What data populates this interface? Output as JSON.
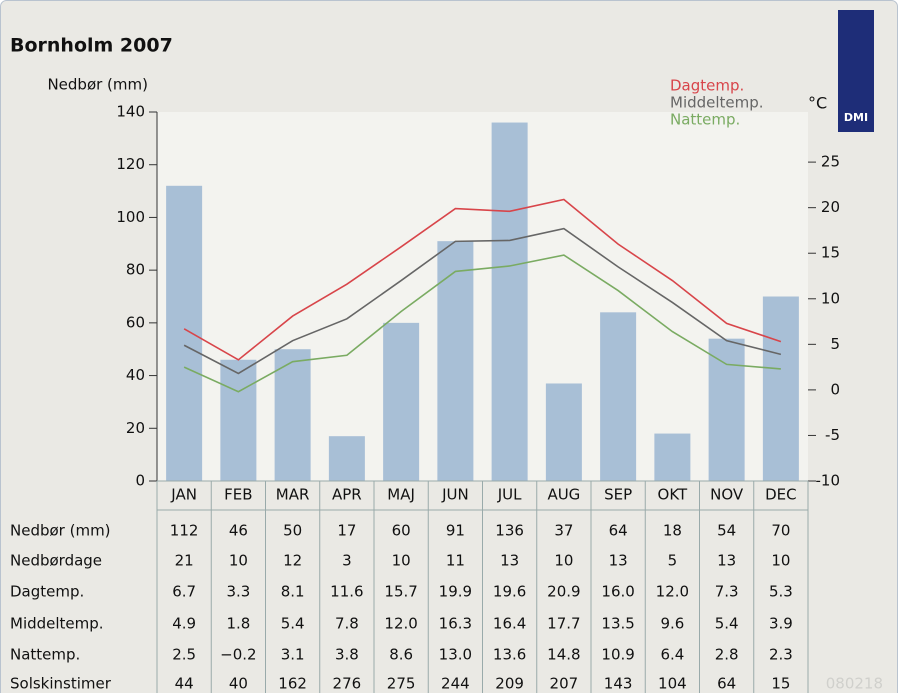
{
  "chart_data": {
    "type": "bar-line",
    "title": "Bornholm 2007",
    "y_label": "Nedbør (mm)",
    "y2_label": "°C",
    "stamp": "080218",
    "logo": "DMI",
    "categories": [
      "JAN",
      "FEB",
      "MAR",
      "APR",
      "MAJ",
      "JUN",
      "JUL",
      "AUG",
      "SEP",
      "OKT",
      "NOV",
      "DEC"
    ],
    "ylim": [
      0,
      140
    ],
    "yticks": [
      0,
      20,
      40,
      60,
      80,
      100,
      120,
      140
    ],
    "y2lim": [
      -10,
      30.5
    ],
    "y2ticks": [
      -10,
      -5,
      0,
      5,
      10,
      15,
      20,
      25
    ],
    "series": [
      {
        "name": "Nedbør (mm)",
        "type": "bar",
        "color": "#a8bfd6",
        "values": [
          112,
          46,
          50,
          17,
          60,
          91,
          136,
          37,
          64,
          18,
          54,
          70
        ]
      },
      {
        "name": "Dagtemp.",
        "type": "line",
        "axis": "y2",
        "color": "#d8454a",
        "values": [
          6.7,
          3.3,
          8.1,
          11.6,
          15.7,
          19.9,
          19.6,
          20.9,
          16.0,
          12.0,
          7.3,
          5.3
        ],
        "value_labels": [
          "6.7",
          "3.3",
          "8.1",
          "11.6",
          "15.7",
          "19.9",
          "19.6",
          "20.9",
          "16.0",
          "12.0",
          "7.3",
          "5.3"
        ]
      },
      {
        "name": "Middeltemp.",
        "type": "line",
        "axis": "y2",
        "color": "#666666",
        "values": [
          4.9,
          1.8,
          5.4,
          7.8,
          12.0,
          16.3,
          16.4,
          17.7,
          13.5,
          9.6,
          5.4,
          3.9
        ],
        "value_labels": [
          "4.9",
          "1.8",
          "5.4",
          "7.8",
          "12.0",
          "16.3",
          "16.4",
          "17.7",
          "13.5",
          "9.6",
          "5.4",
          "3.9"
        ]
      },
      {
        "name": "Nattemp.",
        "type": "line",
        "axis": "y2",
        "color": "#7aab62",
        "values": [
          2.5,
          -0.2,
          3.1,
          3.8,
          8.6,
          13.0,
          13.6,
          14.8,
          10.9,
          6.4,
          2.8,
          2.3
        ],
        "value_labels": [
          "2.5",
          "−0.2",
          "3.1",
          "3.8",
          "8.6",
          "13.0",
          "13.6",
          "14.8",
          "10.9",
          "6.4",
          "2.8",
          "2.3"
        ]
      }
    ],
    "extra_rows": [
      {
        "name": "Nedbørdage",
        "values": [
          21,
          10,
          12,
          3,
          10,
          11,
          13,
          10,
          13,
          5,
          13,
          10
        ]
      },
      {
        "name": "Solskinstimer",
        "values": [
          44,
          40,
          162,
          276,
          275,
          244,
          209,
          207,
          143,
          104,
          64,
          15
        ]
      }
    ]
  }
}
